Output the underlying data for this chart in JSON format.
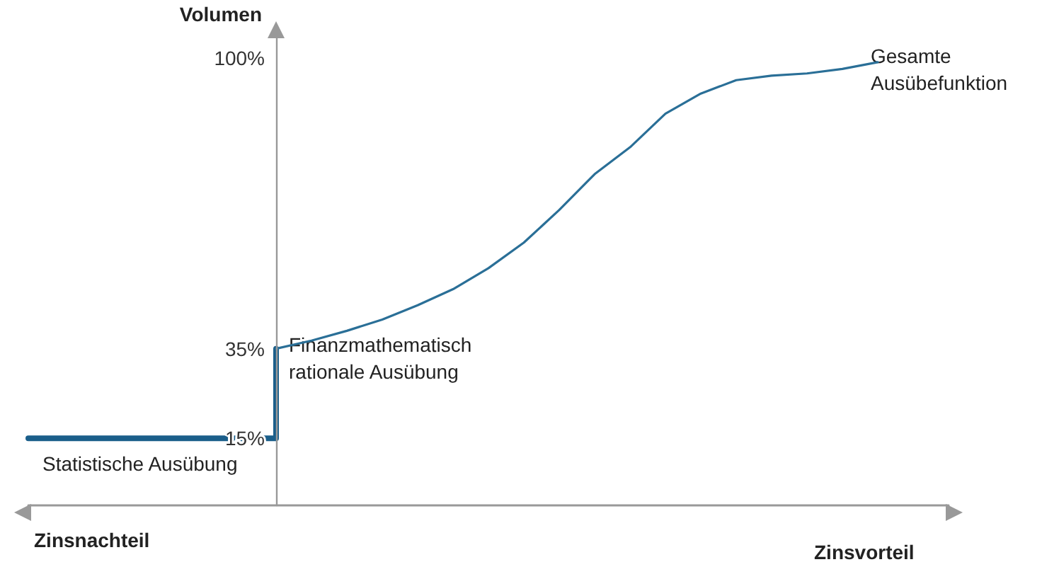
{
  "chart_data": {
    "type": "line",
    "ylabel": "Volumen",
    "xlabel": "Zinsvorteil",
    "annotations": [
      "Gesamte Ausübefunktion",
      "Finanzmathematisch rationale Ausübung",
      "Statistische Ausübung",
      "Zinsnachteil"
    ],
    "categories": [
      null,
      null,
      null,
      null,
      null,
      null,
      null,
      null,
      null,
      null,
      null,
      null,
      null,
      null,
      null,
      null,
      null,
      null,
      null,
      null,
      null,
      null,
      null,
      null,
      null,
      null,
      null
    ],
    "series": [
      {
        "type": "step",
        "color": "#1a5e8a",
        "values": [
          15,
          15,
          15,
          15,
          15,
          15,
          15,
          35,
          null,
          null,
          null,
          null,
          null,
          null,
          null,
          null,
          null,
          null,
          null,
          null,
          null,
          null,
          null,
          null,
          null,
          null,
          null
        ]
      },
      {
        "type": "line",
        "color": "#2a6f97",
        "values": [
          null,
          null,
          null,
          null,
          null,
          null,
          null,
          35,
          36.8,
          39,
          41.5,
          44.7,
          48.3,
          53,
          58.7,
          66,
          74,
          80,
          87.5,
          92,
          95,
          96,
          96.5,
          97.5,
          99,
          null,
          null
        ]
      }
    ],
    "ylim": [
      0,
      105
    ],
    "yticks": [
      {
        "value": 15,
        "label": "15%"
      },
      {
        "value": 35,
        "label": "35%"
      },
      {
        "value": 100,
        "label": "100%"
      }
    ],
    "tick_labels": "y",
    "marker": "none"
  }
}
